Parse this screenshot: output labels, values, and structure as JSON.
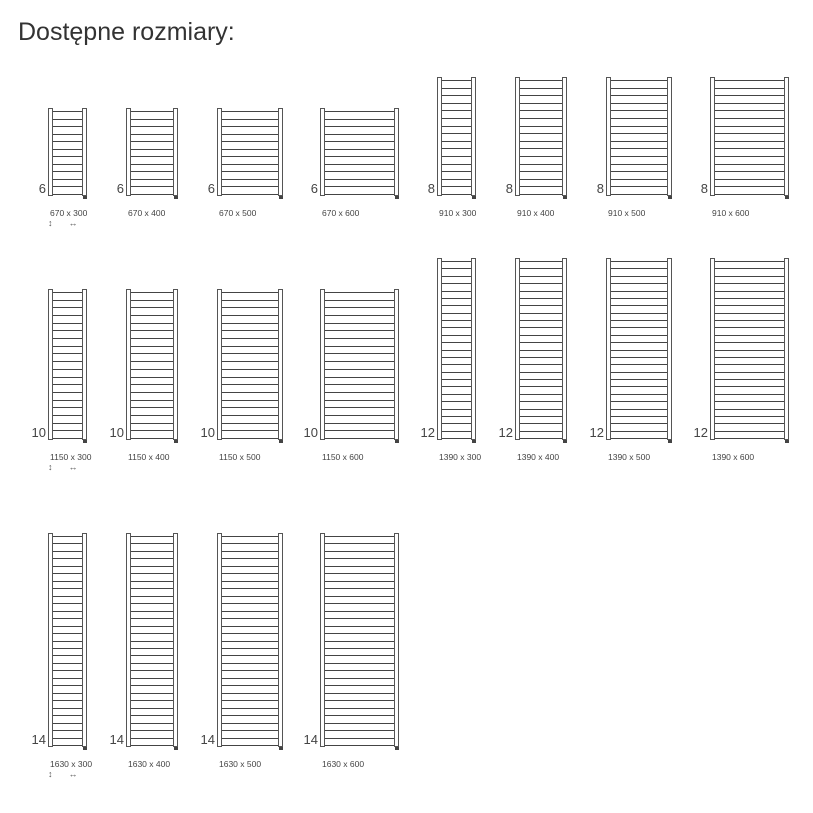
{
  "title": "Dostępne rozmiary:",
  "height_arrow": "↕",
  "width_arrow": "↔",
  "rows": [
    {
      "items": [
        {
          "elements": "6",
          "label": "670 x 300",
          "h": 670,
          "w": 300,
          "arrows": true
        },
        {
          "elements": "6",
          "label": "670 x 400",
          "h": 670,
          "w": 400
        },
        {
          "elements": "6",
          "label": "670 x 500",
          "h": 670,
          "w": 500
        },
        {
          "elements": "6",
          "label": "670 x 600",
          "h": 670,
          "w": 600
        },
        {
          "elements": "8",
          "label": "910 x 300",
          "h": 910,
          "w": 300
        },
        {
          "elements": "8",
          "label": "910 x 400",
          "h": 910,
          "w": 400
        },
        {
          "elements": "8",
          "label": "910 x 500",
          "h": 910,
          "w": 500
        },
        {
          "elements": "8",
          "label": "910 x 600",
          "h": 910,
          "w": 600
        }
      ]
    },
    {
      "items": [
        {
          "elements": "10",
          "label": "1150 x 300",
          "h": 1150,
          "w": 300,
          "arrows": true
        },
        {
          "elements": "10",
          "label": "1150 x 400",
          "h": 1150,
          "w": 400
        },
        {
          "elements": "10",
          "label": "1150 x 500",
          "h": 1150,
          "w": 500
        },
        {
          "elements": "10",
          "label": "1150 x 600",
          "h": 1150,
          "w": 600
        },
        {
          "elements": "12",
          "label": "1390 x 300",
          "h": 1390,
          "w": 300
        },
        {
          "elements": "12",
          "label": "1390 x 400",
          "h": 1390,
          "w": 400
        },
        {
          "elements": "12",
          "label": "1390 x 500",
          "h": 1390,
          "w": 500
        },
        {
          "elements": "12",
          "label": "1390 x 600",
          "h": 1390,
          "w": 600
        }
      ]
    },
    {
      "items": [
        {
          "elements": "14",
          "label": "1630 x 300",
          "h": 1630,
          "w": 300,
          "arrows": true
        },
        {
          "elements": "14",
          "label": "1630 x 400",
          "h": 1630,
          "w": 400
        },
        {
          "elements": "14",
          "label": "1630 x 500",
          "h": 1630,
          "w": 500
        },
        {
          "elements": "14",
          "label": "1630 x 600",
          "h": 1630,
          "w": 600
        }
      ]
    }
  ]
}
